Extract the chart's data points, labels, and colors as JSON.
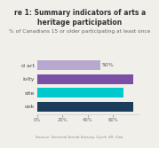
{
  "title_line1": "re 1: Summary indicators of arts a",
  "title_line2": "heritage participation",
  "subtitle": "% of Canadians 15 or older participating at least once",
  "categories": [
    "d art",
    "ivity",
    "site",
    "ook"
  ],
  "values": [
    50,
    76,
    68,
    76
  ],
  "bar_colors": [
    "#b8a8d0",
    "#7b4fa6",
    "#00c8cc",
    "#1a3d5c"
  ],
  "xlim": [
    0,
    80
  ],
  "xticks": [
    0,
    20,
    40,
    60
  ],
  "xticklabels": [
    "0%",
    "20%",
    "40%",
    "60%"
  ],
  "annotation": "50%",
  "source": "Source: General Social Survey, Cycle 30: Can",
  "title_fontsize": 5.5,
  "subtitle_fontsize": 4.2,
  "label_fontsize": 4.5,
  "tick_fontsize": 3.8,
  "source_fontsize": 3.2,
  "background_color": "#f0efea"
}
